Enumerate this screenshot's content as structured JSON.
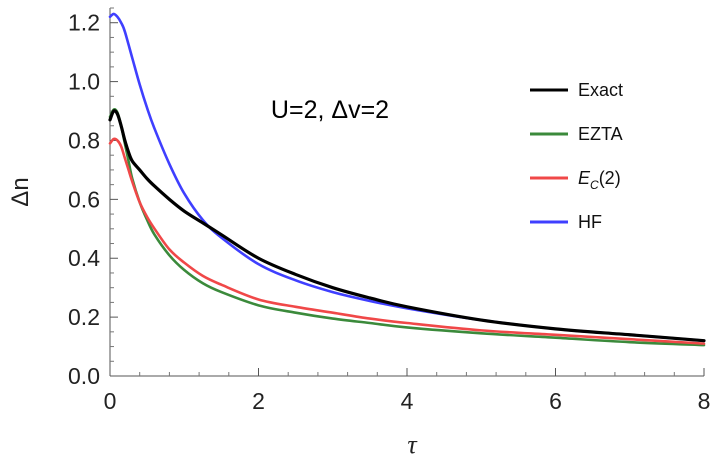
{
  "chart_data": {
    "type": "line",
    "title": "",
    "xlabel": "τ",
    "ylabel": "Δn",
    "xlim": [
      0,
      8
    ],
    "ylim": [
      0,
      1.25
    ],
    "xticks": [
      0,
      2,
      4,
      6,
      8
    ],
    "xtick_labels": [
      "0",
      "2",
      "4",
      "6",
      "8"
    ],
    "yticks": [
      0.0,
      0.2,
      0.4,
      0.6,
      0.8,
      1.0,
      1.2
    ],
    "ytick_labels": [
      "0.0",
      "0.2",
      "0.4",
      "0.6",
      "0.8",
      "1.0",
      "1.2"
    ],
    "grid": false,
    "legend_position": "top-right",
    "annotation": "U=2, Δv=2",
    "series": [
      {
        "name": "Exact",
        "color": "#000000",
        "x": [
          0,
          0.05,
          0.1,
          0.15,
          0.2,
          0.25,
          0.3,
          0.4,
          0.5,
          0.6,
          0.8,
          1.0,
          1.25,
          1.5,
          2.0,
          2.5,
          3.0,
          3.5,
          4.0,
          5.0,
          6.0,
          7.0,
          8.0
        ],
        "y": [
          0.87,
          0.9,
          0.89,
          0.85,
          0.8,
          0.76,
          0.73,
          0.7,
          0.67,
          0.645,
          0.6,
          0.56,
          0.52,
          0.48,
          0.4,
          0.345,
          0.3,
          0.265,
          0.235,
          0.19,
          0.16,
          0.14,
          0.12
        ]
      },
      {
        "name": "EZTA",
        "color": "#3b8a3b",
        "x": [
          0,
          0.05,
          0.1,
          0.15,
          0.2,
          0.25,
          0.3,
          0.4,
          0.5,
          0.6,
          0.8,
          1.0,
          1.25,
          1.5,
          2.0,
          2.5,
          3.0,
          3.5,
          4.0,
          5.0,
          6.0,
          7.0,
          8.0
        ],
        "y": [
          0.88,
          0.905,
          0.895,
          0.85,
          0.79,
          0.73,
          0.67,
          0.59,
          0.53,
          0.48,
          0.41,
          0.36,
          0.315,
          0.285,
          0.24,
          0.215,
          0.195,
          0.18,
          0.165,
          0.145,
          0.13,
          0.115,
          0.105
        ]
      },
      {
        "name": "E_C(2)",
        "color": "#f04848",
        "x": [
          0,
          0.05,
          0.1,
          0.15,
          0.2,
          0.25,
          0.3,
          0.4,
          0.5,
          0.6,
          0.8,
          1.0,
          1.25,
          1.5,
          2.0,
          2.5,
          3.0,
          3.5,
          4.0,
          5.0,
          6.0,
          7.0,
          8.0
        ],
        "y": [
          0.79,
          0.805,
          0.8,
          0.78,
          0.74,
          0.7,
          0.66,
          0.59,
          0.54,
          0.5,
          0.43,
          0.385,
          0.34,
          0.31,
          0.26,
          0.235,
          0.215,
          0.195,
          0.18,
          0.155,
          0.14,
          0.125,
          0.11
        ]
      },
      {
        "name": "HF",
        "color": "#3f3fff",
        "x": [
          0,
          0.05,
          0.1,
          0.15,
          0.2,
          0.3,
          0.4,
          0.5,
          0.6,
          0.8,
          1.0,
          1.25,
          1.5,
          2.0,
          2.5,
          3.0,
          3.5,
          4.0,
          5.0,
          6.0,
          7.0,
          8.0
        ],
        "y": [
          1.22,
          1.23,
          1.22,
          1.2,
          1.17,
          1.08,
          0.99,
          0.91,
          0.84,
          0.72,
          0.62,
          0.53,
          0.47,
          0.38,
          0.325,
          0.285,
          0.255,
          0.23,
          0.19,
          0.16,
          0.14,
          0.12
        ]
      }
    ]
  }
}
